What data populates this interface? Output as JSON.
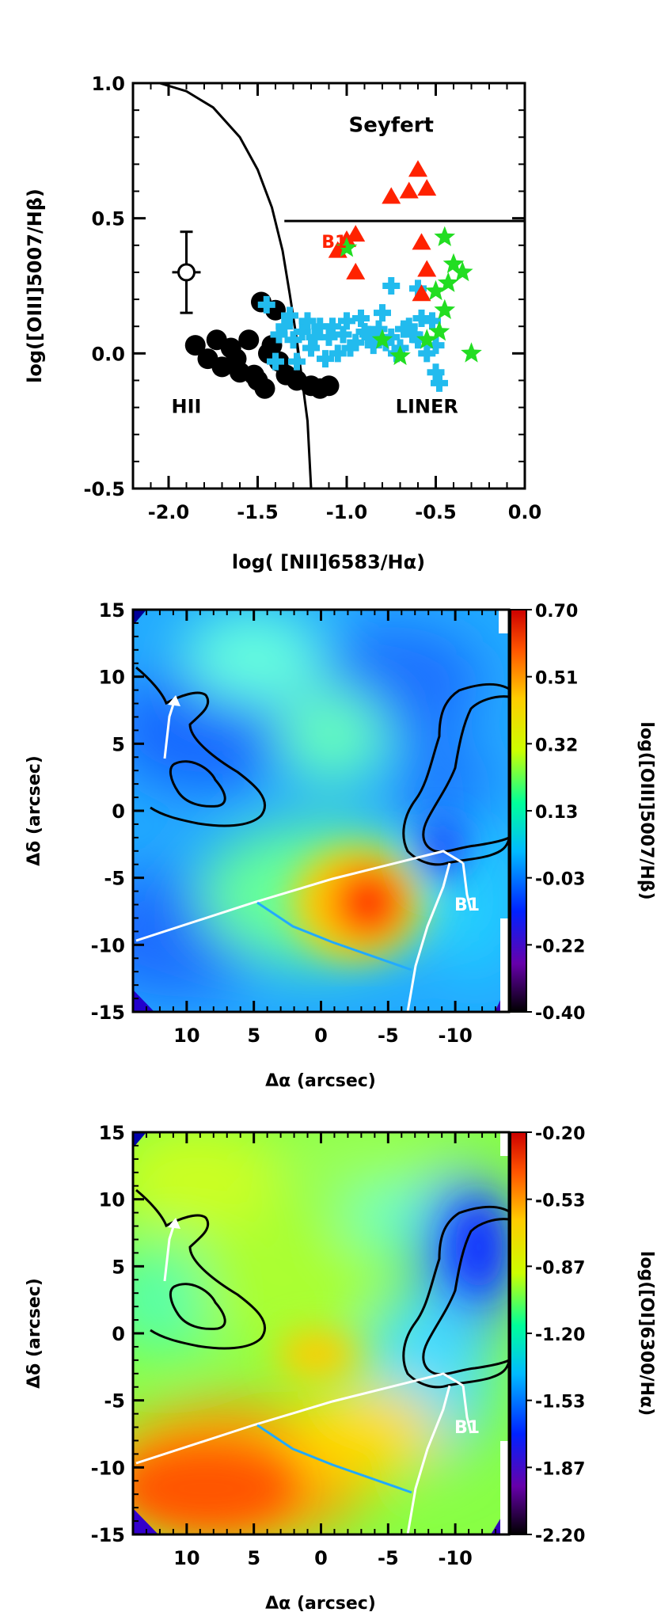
{
  "chart_data": [
    {
      "type": "scatter",
      "xlabel": "log( [NII]6583/Hα)",
      "ylabel": "log([OIII]5007/Hβ)",
      "xlim": [
        -2.2,
        0.0
      ],
      "ylim": [
        -0.5,
        1.0
      ],
      "xticks": [
        "-2.0",
        "-1.5",
        "-1.0",
        "-0.5",
        "0.0"
      ],
      "yticks": [
        "-0.5",
        "0.0",
        "0.5",
        "1.0"
      ],
      "region_labels": [
        {
          "text": "Seyfert",
          "x": -0.75,
          "y": 0.82
        },
        {
          "text": "HII",
          "x": -1.9,
          "y": -0.22
        },
        {
          "text": "LINER",
          "x": -0.55,
          "y": -0.22
        },
        {
          "text": "B1",
          "x": -1.07,
          "y": 0.39
        }
      ],
      "kauffmann_curve": [
        [
          -2.05,
          1.0
        ],
        [
          -1.9,
          0.97
        ],
        [
          -1.75,
          0.91
        ],
        [
          -1.6,
          0.8
        ],
        [
          -1.5,
          0.68
        ],
        [
          -1.42,
          0.54
        ],
        [
          -1.36,
          0.38
        ],
        [
          -1.32,
          0.22
        ],
        [
          -1.28,
          0.05
        ],
        [
          -1.26,
          -0.1
        ]
      ],
      "kewley_line": [
        [
          -1.28,
          0.05
        ],
        [
          -1.25,
          -0.1
        ],
        [
          -1.22,
          -0.25
        ],
        [
          -1.2,
          -0.5
        ]
      ],
      "seyfert_liner_line": [
        [
          -1.35,
          0.49
        ],
        [
          0.0,
          0.49
        ]
      ],
      "error_bar": {
        "x": -1.9,
        "y": 0.3,
        "xerr": 0.08,
        "yerr": 0.15
      },
      "series": [
        {
          "marker": "circle",
          "color": "#000000",
          "x": [
            -1.85,
            -1.78,
            -1.7,
            -1.65,
            -1.6,
            -1.55,
            -1.5,
            -1.46,
            -1.42,
            -1.38,
            -1.73,
            -1.62,
            -1.52,
            -1.44,
            -1.34,
            -1.28,
            -1.2,
            -1.15,
            -1.1,
            -1.48,
            -1.4
          ],
          "y": [
            0.03,
            -0.02,
            -0.05,
            0.02,
            -0.07,
            0.05,
            -0.1,
            -0.13,
            0.03,
            -0.03,
            0.05,
            -0.02,
            -0.08,
            0.0,
            -0.08,
            -0.1,
            -0.12,
            -0.13,
            -0.12,
            0.19,
            0.16
          ]
        },
        {
          "marker": "cross",
          "color": "#22bbee",
          "x": [
            -1.45,
            -1.4,
            -1.35,
            -1.3,
            -1.25,
            -1.2,
            -1.15,
            -1.1,
            -1.05,
            -1.0,
            -0.95,
            -0.9,
            -0.85,
            -0.8,
            -0.75,
            -0.7,
            -0.65,
            -0.6,
            -0.55,
            -0.5,
            -1.32,
            -1.22,
            -1.12,
            -1.02,
            -0.92,
            -0.82,
            -0.72,
            -0.62,
            -0.52,
            -1.18,
            -1.08,
            -0.98,
            -0.88,
            -0.78,
            -0.68,
            -0.58,
            -0.48,
            -1.38,
            -0.75,
            -0.6,
            -0.5,
            -0.85,
            -1.28
          ],
          "y": [
            0.18,
            -0.03,
            0.1,
            0.05,
            0.08,
            0.02,
            0.1,
            0.06,
            0.0,
            0.12,
            0.04,
            0.08,
            0.03,
            0.15,
            0.06,
            0.02,
            0.1,
            0.05,
            0.0,
            -0.07,
            0.14,
            0.12,
            -0.02,
            0.07,
            0.13,
            0.09,
            0.0,
            0.07,
            0.12,
            0.06,
            0.1,
            0.02,
            0.07,
            0.04,
            0.09,
            0.13,
            -0.11,
            0.07,
            0.25,
            0.24,
            0.03,
            0.05,
            -0.03
          ]
        },
        {
          "marker": "triangle",
          "color": "#ff2200",
          "x": [
            -0.6,
            -0.55,
            -0.65,
            -0.75,
            -0.95,
            -1.0,
            -0.58,
            -0.95,
            -0.58,
            -1.05,
            -0.55
          ],
          "y": [
            0.68,
            0.61,
            0.6,
            0.58,
            0.44,
            0.42,
            0.41,
            0.3,
            0.22,
            0.38,
            0.31
          ]
        },
        {
          "marker": "star",
          "color": "#22dd22",
          "x": [
            -1.0,
            -0.45,
            -0.4,
            -0.35,
            -0.5,
            -0.45,
            -0.55,
            -0.8,
            -0.7,
            -0.3,
            -0.48,
            -0.43
          ],
          "y": [
            0.39,
            0.43,
            0.33,
            0.3,
            0.23,
            0.16,
            0.05,
            0.05,
            -0.01,
            0.0,
            0.08,
            0.26
          ]
        }
      ]
    },
    {
      "type": "heatmap",
      "xlabel": "Δα (arcsec)",
      "ylabel": "Δδ (arcsec)",
      "xticks": [
        "10",
        "5",
        "0",
        "-5",
        "-10"
      ],
      "yticks": [
        "15",
        "10",
        "5",
        "0",
        "-5",
        "-10",
        "-15"
      ],
      "xlim": [
        14,
        -14
      ],
      "ylim": [
        -15,
        15
      ],
      "colorbar_label": "log([OIII]5007/Hβ)",
      "colorbar_ticks": [
        "0.70",
        "0.51",
        "0.32",
        "0.13",
        "-0.03",
        "-0.22",
        "-0.40"
      ],
      "colormap": [
        "#000000",
        "#6600aa",
        "#0022ff",
        "#00bbff",
        "#00ff99",
        "#ccff00",
        "#ffcc00",
        "#ff5500",
        "#cc0000"
      ],
      "annotations": [
        {
          "text": "B1",
          "x": -10.5,
          "y": -7.5
        }
      ]
    },
    {
      "type": "heatmap",
      "xlabel": "Δα (arcsec)",
      "ylabel": "Δδ (arcsec)",
      "xticks": [
        "10",
        "5",
        "0",
        "-5",
        "-10"
      ],
      "yticks": [
        "15",
        "10",
        "5",
        "0",
        "-5",
        "-10",
        "-15"
      ],
      "xlim": [
        14,
        -14
      ],
      "ylim": [
        -15,
        15
      ],
      "colorbar_label": "log([OI]6300/Hα)",
      "colorbar_ticks": [
        "-0.20",
        "-0.53",
        "-0.87",
        "-1.20",
        "-1.53",
        "-1.87",
        "-2.20"
      ],
      "colormap": [
        "#000000",
        "#6600aa",
        "#0022ff",
        "#00bbff",
        "#00ff99",
        "#ccff00",
        "#ffcc00",
        "#ff5500",
        "#cc0000"
      ],
      "annotations": [
        {
          "text": "B1",
          "x": -10.5,
          "y": -7.5
        }
      ]
    }
  ]
}
